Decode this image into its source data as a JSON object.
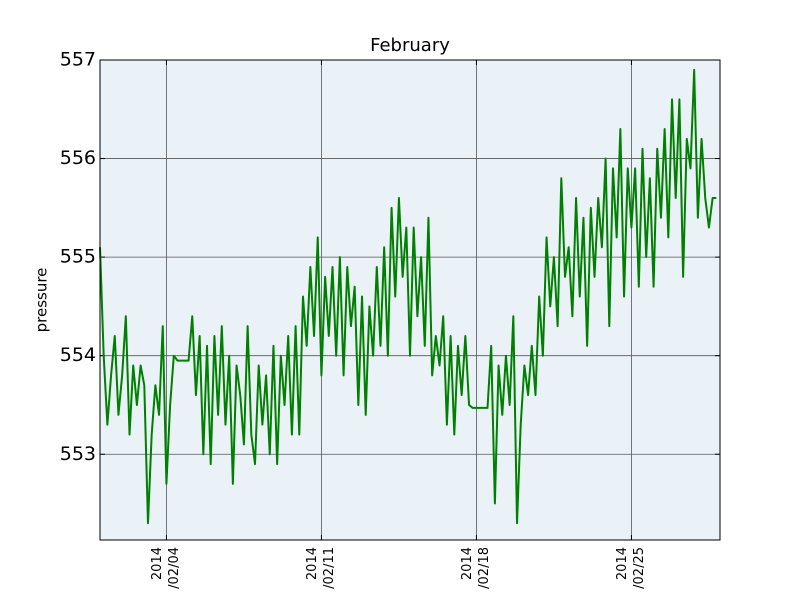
{
  "chart_data": {
    "type": "line",
    "title": "February",
    "y_label": "pressure",
    "color": "#008000",
    "background": "#eaf2f8",
    "grid": true,
    "xlim": [
      "2014-02-01T00:00",
      "2014-03-01T00:00"
    ],
    "ylim": [
      552.13,
      557
    ],
    "yticks": [
      553,
      554,
      555,
      556,
      557
    ],
    "xticks": [
      {
        "value": "2014-02-04T00:00",
        "label": "2014\n/02/04"
      },
      {
        "value": "2014-02-11T00:00",
        "label": "2014\n/02/11"
      },
      {
        "value": "2014-02-18T00:00",
        "label": "2014\n/02/18"
      },
      {
        "value": "2014-02-25T00:00",
        "label": "2014\n/02/25"
      }
    ],
    "x": [
      "2014-02-01T00:00",
      "2014-02-01T04:00",
      "2014-02-01T08:00",
      "2014-02-01T12:00",
      "2014-02-01T16:00",
      "2014-02-01T20:00",
      "2014-02-02T00:00",
      "2014-02-02T04:00",
      "2014-02-02T08:00",
      "2014-02-02T12:00",
      "2014-02-02T16:00",
      "2014-02-02T20:00",
      "2014-02-03T00:00",
      "2014-02-03T04:00",
      "2014-02-03T08:00",
      "2014-02-03T12:00",
      "2014-02-03T16:00",
      "2014-02-03T20:00",
      "2014-02-04T00:00",
      "2014-02-04T04:00",
      "2014-02-04T08:00",
      "2014-02-04T12:00",
      "2014-02-04T16:00",
      "2014-02-04T20:00",
      "2014-02-05T00:00",
      "2014-02-05T04:00",
      "2014-02-05T08:00",
      "2014-02-05T12:00",
      "2014-02-05T16:00",
      "2014-02-05T20:00",
      "2014-02-06T00:00",
      "2014-02-06T04:00",
      "2014-02-06T08:00",
      "2014-02-06T12:00",
      "2014-02-06T16:00",
      "2014-02-06T20:00",
      "2014-02-07T00:00",
      "2014-02-07T04:00",
      "2014-02-07T08:00",
      "2014-02-07T12:00",
      "2014-02-07T16:00",
      "2014-02-07T20:00",
      "2014-02-08T00:00",
      "2014-02-08T04:00",
      "2014-02-08T08:00",
      "2014-02-08T12:00",
      "2014-02-08T16:00",
      "2014-02-08T20:00",
      "2014-02-09T00:00",
      "2014-02-09T04:00",
      "2014-02-09T08:00",
      "2014-02-09T12:00",
      "2014-02-09T16:00",
      "2014-02-09T20:00",
      "2014-02-10T00:00",
      "2014-02-10T04:00",
      "2014-02-10T08:00",
      "2014-02-10T12:00",
      "2014-02-10T16:00",
      "2014-02-10T20:00",
      "2014-02-11T00:00",
      "2014-02-11T04:00",
      "2014-02-11T08:00",
      "2014-02-11T12:00",
      "2014-02-11T16:00",
      "2014-02-11T20:00",
      "2014-02-12T00:00",
      "2014-02-12T04:00",
      "2014-02-12T08:00",
      "2014-02-12T12:00",
      "2014-02-12T16:00",
      "2014-02-12T20:00",
      "2014-02-13T00:00",
      "2014-02-13T04:00",
      "2014-02-13T08:00",
      "2014-02-13T12:00",
      "2014-02-13T16:00",
      "2014-02-13T20:00",
      "2014-02-14T00:00",
      "2014-02-14T04:00",
      "2014-02-14T08:00",
      "2014-02-14T12:00",
      "2014-02-14T16:00",
      "2014-02-14T20:00",
      "2014-02-15T00:00",
      "2014-02-15T04:00",
      "2014-02-15T08:00",
      "2014-02-15T12:00",
      "2014-02-15T16:00",
      "2014-02-15T20:00",
      "2014-02-16T00:00",
      "2014-02-16T04:00",
      "2014-02-16T08:00",
      "2014-02-16T12:00",
      "2014-02-16T16:00",
      "2014-02-16T20:00",
      "2014-02-17T00:00",
      "2014-02-17T04:00",
      "2014-02-17T08:00",
      "2014-02-17T12:00",
      "2014-02-17T16:00",
      "2014-02-17T20:00",
      "2014-02-18T00:00",
      "2014-02-18T04:00",
      "2014-02-18T08:00",
      "2014-02-18T12:00",
      "2014-02-18T16:00",
      "2014-02-18T20:00",
      "2014-02-19T00:00",
      "2014-02-19T04:00",
      "2014-02-19T08:00",
      "2014-02-19T12:00",
      "2014-02-19T16:00",
      "2014-02-19T20:00",
      "2014-02-20T00:00",
      "2014-02-20T04:00",
      "2014-02-20T08:00",
      "2014-02-20T12:00",
      "2014-02-20T16:00",
      "2014-02-20T20:00",
      "2014-02-21T00:00",
      "2014-02-21T04:00",
      "2014-02-21T08:00",
      "2014-02-21T12:00",
      "2014-02-21T16:00",
      "2014-02-21T20:00",
      "2014-02-22T00:00",
      "2014-02-22T04:00",
      "2014-02-22T08:00",
      "2014-02-22T12:00",
      "2014-02-22T16:00",
      "2014-02-22T20:00",
      "2014-02-23T00:00",
      "2014-02-23T04:00",
      "2014-02-23T08:00",
      "2014-02-23T12:00",
      "2014-02-23T16:00",
      "2014-02-23T20:00",
      "2014-02-24T00:00",
      "2014-02-24T04:00",
      "2014-02-24T08:00",
      "2014-02-24T12:00",
      "2014-02-24T16:00",
      "2014-02-24T20:00",
      "2014-02-25T00:00",
      "2014-02-25T04:00",
      "2014-02-25T08:00",
      "2014-02-25T12:00",
      "2014-02-25T16:00",
      "2014-02-25T20:00",
      "2014-02-26T00:00",
      "2014-02-26T04:00",
      "2014-02-26T08:00",
      "2014-02-26T12:00",
      "2014-02-26T16:00",
      "2014-02-26T20:00",
      "2014-02-27T00:00",
      "2014-02-27T04:00",
      "2014-02-27T08:00",
      "2014-02-27T12:00",
      "2014-02-27T16:00",
      "2014-02-27T20:00",
      "2014-02-28T00:00",
      "2014-02-28T04:00",
      "2014-02-28T08:00",
      "2014-02-28T12:00",
      "2014-02-28T16:00",
      "2014-02-28T20:00"
    ],
    "values": [
      555.1,
      554.0,
      553.3,
      553.8,
      554.2,
      553.4,
      553.8,
      554.4,
      553.2,
      553.9,
      553.5,
      553.9,
      553.7,
      552.3,
      553.2,
      553.7,
      553.4,
      554.3,
      552.7,
      553.5,
      554.0,
      553.95,
      553.95,
      553.95,
      553.95,
      554.4,
      553.6,
      554.2,
      553.0,
      554.1,
      552.9,
      554.2,
      553.4,
      554.3,
      553.3,
      554.0,
      552.7,
      553.9,
      553.6,
      553.1,
      554.3,
      553.2,
      552.9,
      553.9,
      553.3,
      553.8,
      553.0,
      554.1,
      552.9,
      554.0,
      553.5,
      554.2,
      553.2,
      554.3,
      553.2,
      554.6,
      554.1,
      554.9,
      554.2,
      555.2,
      553.8,
      554.8,
      554.2,
      554.9,
      554.0,
      555.0,
      553.8,
      554.9,
      554.3,
      554.7,
      553.5,
      554.6,
      553.4,
      554.5,
      554.0,
      554.9,
      554.1,
      555.1,
      554.0,
      555.5,
      554.6,
      555.6,
      554.8,
      555.3,
      554.0,
      555.3,
      554.4,
      555.0,
      554.1,
      555.4,
      553.8,
      554.2,
      553.9,
      554.4,
      553.3,
      554.2,
      553.2,
      554.1,
      553.6,
      554.2,
      553.5,
      553.47,
      553.47,
      553.47,
      553.47,
      553.47,
      554.1,
      552.5,
      553.9,
      553.4,
      554.0,
      553.5,
      554.4,
      552.3,
      553.3,
      553.9,
      553.6,
      554.1,
      553.6,
      554.6,
      554.0,
      555.2,
      554.5,
      555.0,
      554.3,
      555.8,
      554.8,
      555.1,
      554.4,
      555.6,
      554.6,
      555.4,
      554.1,
      555.5,
      554.8,
      555.6,
      555.1,
      556.0,
      554.3,
      555.9,
      555.2,
      556.3,
      554.6,
      555.9,
      555.3,
      555.9,
      554.7,
      556.1,
      555.0,
      555.8,
      554.7,
      556.1,
      555.4,
      556.3,
      555.2,
      556.6,
      555.6,
      556.6,
      554.8,
      556.2,
      555.9,
      556.9,
      555.4,
      556.2,
      555.6,
      555.3,
      555.6,
      555.6
    ]
  }
}
